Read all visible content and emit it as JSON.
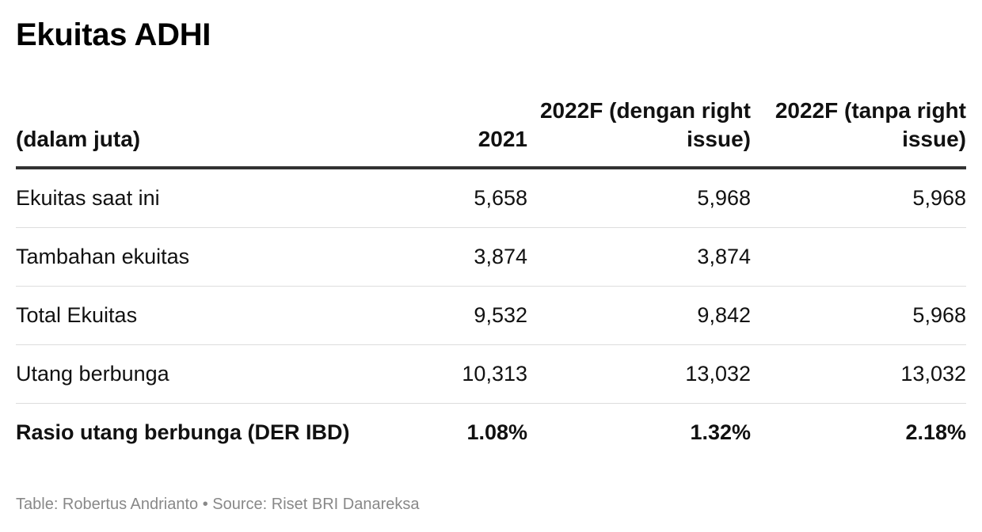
{
  "title": "Ekuitas ADHI",
  "footer": "Table: Robertus Andrianto • Source: Riset BRI Danareksa",
  "chart_data": {
    "type": "table",
    "title": "Ekuitas ADHI",
    "columns": [
      "(dalam juta)",
      "2021",
      "2022F (dengan right issue)",
      "2022F (tanpa right issue)"
    ],
    "rows": [
      {
        "label": "Ekuitas saat ini",
        "values": [
          "5,658",
          "5,968",
          "5,968"
        ]
      },
      {
        "label": "Tambahan ekuitas",
        "values": [
          "3,874",
          "3,874",
          ""
        ]
      },
      {
        "label": "Total Ekuitas",
        "values": [
          "9,532",
          "9,842",
          "5,968"
        ]
      },
      {
        "label": "Utang berbunga",
        "values": [
          "10,313",
          "13,032",
          "13,032"
        ]
      },
      {
        "label": "Rasio utang berbunga (DER IBD)",
        "values": [
          "1.08%",
          "1.32%",
          "2.18%"
        ]
      }
    ],
    "bold_last_row": true
  }
}
